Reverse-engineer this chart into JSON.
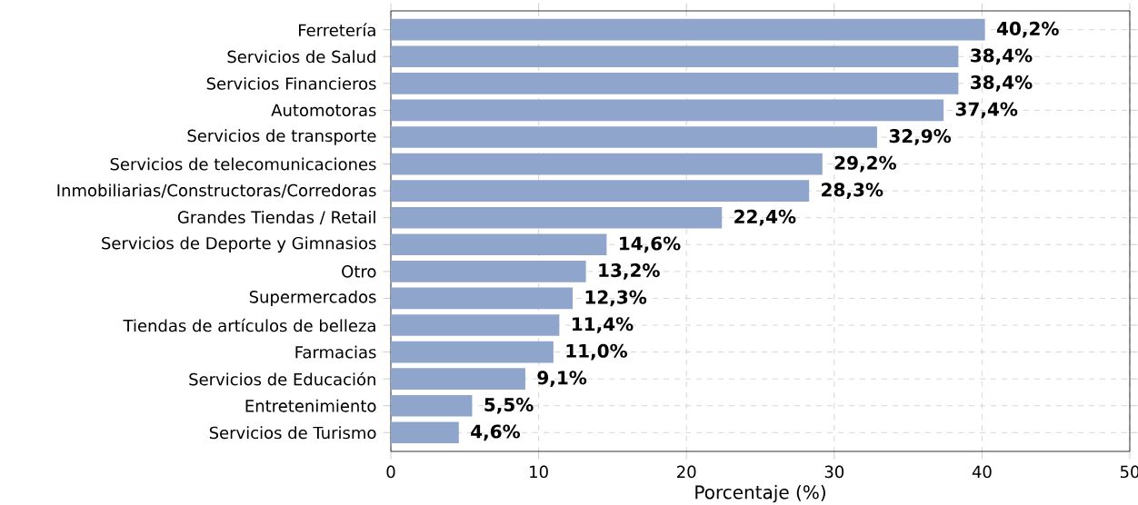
{
  "chart_data": {
    "type": "bar",
    "orientation": "horizontal",
    "xlabel": "Porcentaje (%)",
    "categories": [
      "Ferretería",
      "Servicios de Salud",
      "Servicios Financieros",
      "Automotoras",
      "Servicios de transporte",
      "Servicios de telecomunicaciones",
      "Inmobiliarias/Constructoras/Corredoras",
      "Grandes Tiendas / Retail",
      "Servicios de Deporte y Gimnasios",
      "Otro",
      "Supermercados",
      "Tiendas de artículos de belleza",
      "Farmacias",
      "Servicios de Educación",
      "Entretenimiento",
      "Servicios de Turismo"
    ],
    "values": [
      40.2,
      38.4,
      38.4,
      37.4,
      32.9,
      29.2,
      28.3,
      22.4,
      14.6,
      13.2,
      12.3,
      11.4,
      11.0,
      9.1,
      5.5,
      4.6
    ],
    "value_labels": [
      "40,2%",
      "38,4%",
      "38,4%",
      "37,4%",
      "32,9%",
      "29,2%",
      "28,3%",
      "22,4%",
      "14,6%",
      "13,2%",
      "12,3%",
      "11,4%",
      "11,0%",
      "9,1%",
      "5,5%",
      "4,6%"
    ],
    "color": "#8fa5cc",
    "xlim": [
      0,
      50
    ],
    "xticks": [
      0,
      10,
      20,
      30,
      40,
      50
    ],
    "grid": true
  }
}
